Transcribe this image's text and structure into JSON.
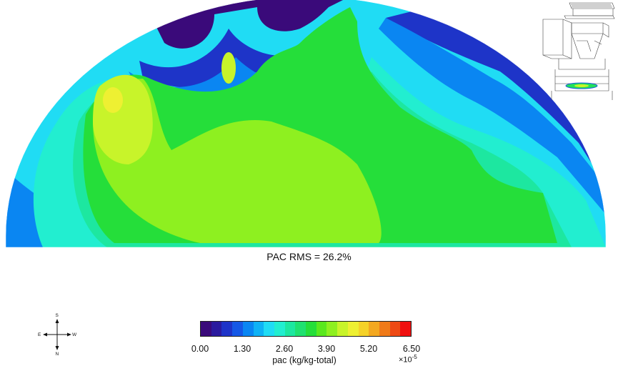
{
  "caption": "PAC RMS = 26.2%",
  "compass": {
    "north": "N",
    "south": "S",
    "east": "E",
    "west": "W"
  },
  "colorbar": {
    "label": "pac (kg/kg-total)",
    "scale_prefix": "×10",
    "scale_exponent": "-5",
    "ticks": [
      "0.00",
      "1.30",
      "2.60",
      "3.90",
      "5.20",
      "6.50"
    ],
    "range": [
      0.0,
      6.5
    ],
    "colors": [
      "#3a0a7a",
      "#2a1a9e",
      "#1e34c8",
      "#1558e6",
      "#0a86f2",
      "#0fb2f5",
      "#20dcf4",
      "#22eed0",
      "#1de7a0",
      "#1fe170",
      "#25de3a",
      "#5ae81e",
      "#8ef020",
      "#c8f42a",
      "#eef032",
      "#f5d228",
      "#f3a820",
      "#f07a18",
      "#ee4a14",
      "#f01010"
    ]
  },
  "plot": {
    "field": "pac",
    "shape": "half-disk cross-section",
    "palette": {
      "violet": "#3a0a7a",
      "deep_blue": "#1e34c8",
      "blue": "#0a86f2",
      "cyan": "#20dcf4",
      "aqua": "#22eed0",
      "green_teal": "#1de7a0",
      "green": "#25de3a",
      "yellow_green": "#8ef020",
      "lime": "#c8f42a",
      "yellow": "#eef032"
    }
  }
}
